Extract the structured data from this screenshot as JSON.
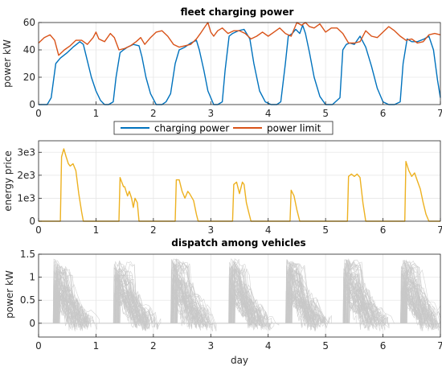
{
  "chart_data": [
    {
      "type": "line",
      "title": "fleet charging power",
      "xlabel": "",
      "ylabel": "power kW",
      "xlim": [
        0,
        7
      ],
      "ylim": [
        0,
        60
      ],
      "xticks": [
        "0",
        "1",
        "2",
        "3",
        "4",
        "5",
        "6",
        "7"
      ],
      "yticks": [
        "0",
        "20",
        "40",
        "60"
      ],
      "grid": true,
      "legend": {
        "placement": "bottom-center",
        "entries": [
          "charging power",
          "power limit"
        ]
      },
      "series": [
        {
          "name": "charging power",
          "color": "#0072BD",
          "x": [
            0,
            0.15,
            0.22,
            0.3,
            0.38,
            0.5,
            0.6,
            0.72,
            0.78,
            0.85,
            0.92,
            1.0,
            1.08,
            1.15,
            1.22,
            1.3,
            1.35,
            1.42,
            1.48,
            1.55,
            1.65,
            1.75,
            1.8,
            1.87,
            1.95,
            2.05,
            2.15,
            2.22,
            2.3,
            2.38,
            2.45,
            2.55,
            2.65,
            2.75,
            2.8,
            2.88,
            2.95,
            3.05,
            3.12,
            3.2,
            3.25,
            3.32,
            3.38,
            3.48,
            3.58,
            3.68,
            3.75,
            3.85,
            3.95,
            4.05,
            4.15,
            4.22,
            4.3,
            4.35,
            4.42,
            4.48,
            4.55,
            4.6,
            4.65,
            4.72,
            4.8,
            4.9,
            5.0,
            5.12,
            5.25,
            5.3,
            5.36,
            5.42,
            5.5,
            5.6,
            5.7,
            5.8,
            5.9,
            6.0,
            6.1,
            6.2,
            6.3,
            6.35,
            6.42,
            6.5,
            6.6,
            6.72,
            6.8,
            6.88,
            6.95,
            7.0
          ],
          "y": [
            0,
            0,
            5,
            30,
            34,
            38,
            42,
            46,
            44,
            32,
            20,
            10,
            3,
            0,
            0,
            2,
            20,
            38,
            40,
            42,
            44,
            43,
            35,
            20,
            8,
            0,
            0,
            2,
            8,
            30,
            40,
            42,
            45,
            47,
            40,
            25,
            10,
            0,
            0,
            2,
            25,
            50,
            52,
            54,
            55,
            48,
            30,
            10,
            2,
            0,
            0,
            2,
            30,
            50,
            52,
            55,
            52,
            58,
            52,
            38,
            20,
            6,
            0,
            0,
            5,
            40,
            44,
            45,
            44,
            50,
            42,
            28,
            12,
            2,
            0,
            0,
            2,
            30,
            48,
            46,
            46,
            48,
            50,
            40,
            18,
            5
          ]
        },
        {
          "name": "power limit",
          "color": "#D95319",
          "x": [
            0,
            0.1,
            0.2,
            0.28,
            0.35,
            0.45,
            0.55,
            0.65,
            0.75,
            0.85,
            0.95,
            1.0,
            1.05,
            1.15,
            1.25,
            1.32,
            1.4,
            1.5,
            1.6,
            1.7,
            1.78,
            1.85,
            1.95,
            2.05,
            2.15,
            2.25,
            2.35,
            2.45,
            2.55,
            2.65,
            2.75,
            2.82,
            2.9,
            2.95,
            3.0,
            3.05,
            3.12,
            3.2,
            3.3,
            3.4,
            3.5,
            3.6,
            3.7,
            3.8,
            3.9,
            4.0,
            4.1,
            4.2,
            4.3,
            4.4,
            4.5,
            4.58,
            4.65,
            4.72,
            4.8,
            4.9,
            5.0,
            5.1,
            5.2,
            5.3,
            5.4,
            5.5,
            5.6,
            5.7,
            5.8,
            5.9,
            6.0,
            6.1,
            6.2,
            6.3,
            6.4,
            6.5,
            6.6,
            6.7,
            6.8,
            6.9,
            7.0
          ],
          "y": [
            45,
            49,
            51,
            47,
            36,
            40,
            43,
            47,
            47,
            44,
            49,
            53,
            48,
            46,
            52,
            49,
            40,
            41,
            43,
            46,
            49,
            44,
            49,
            53,
            54,
            50,
            44,
            42,
            43,
            44,
            48,
            52,
            57,
            60,
            53,
            50,
            54,
            56,
            52,
            54,
            54,
            52,
            48,
            50,
            53,
            50,
            53,
            56,
            52,
            50,
            60,
            58,
            60,
            57,
            56,
            59,
            53,
            56,
            56,
            52,
            45,
            45,
            46,
            54,
            50,
            49,
            53,
            57,
            54,
            50,
            47,
            48,
            45,
            46,
            51,
            52,
            51
          ]
        }
      ]
    },
    {
      "type": "line",
      "title": "",
      "xlabel": "",
      "ylabel": "energy price",
      "xlim": [
        0,
        7
      ],
      "ylim": [
        0,
        3500
      ],
      "xticks": [
        "0",
        "1",
        "2",
        "3",
        "4",
        "5",
        "6",
        "7"
      ],
      "yticks": [
        "0",
        "1e3",
        "2e3",
        "3e3"
      ],
      "grid": true,
      "series": [
        {
          "name": "",
          "color": "#EDB120",
          "x": [
            0,
            0.38,
            0.4,
            0.44,
            0.48,
            0.52,
            0.55,
            0.6,
            0.65,
            0.7,
            0.75,
            0.78,
            1.4,
            1.42,
            1.48,
            1.5,
            1.55,
            1.58,
            1.62,
            1.65,
            1.68,
            1.72,
            1.75,
            2.38,
            2.4,
            2.45,
            2.5,
            2.55,
            2.6,
            2.63,
            2.7,
            2.75,
            2.78,
            3.38,
            3.4,
            3.45,
            3.5,
            3.55,
            3.58,
            3.62,
            3.66,
            3.7,
            4.38,
            4.4,
            4.45,
            4.5,
            4.55,
            5.38,
            5.4,
            5.45,
            5.5,
            5.55,
            5.6,
            5.65,
            5.7,
            6.38,
            6.4,
            6.45,
            6.5,
            6.55,
            6.6,
            6.65,
            6.7,
            6.75,
            6.8,
            7.0
          ],
          "y": [
            0,
            0,
            2800,
            3150,
            2800,
            2500,
            2400,
            2500,
            2200,
            1200,
            400,
            0,
            0,
            1900,
            1500,
            1500,
            1100,
            1300,
            1000,
            600,
            1000,
            800,
            0,
            0,
            1800,
            1800,
            1300,
            1000,
            1300,
            1200,
            900,
            300,
            0,
            0,
            1600,
            1700,
            1200,
            1700,
            1600,
            800,
            400,
            0,
            0,
            1350,
            1100,
            500,
            0,
            0,
            1950,
            2050,
            1950,
            2050,
            1900,
            800,
            0,
            0,
            2600,
            2200,
            1950,
            2100,
            1750,
            1400,
            800,
            300,
            0,
            0
          ]
        }
      ]
    },
    {
      "type": "line",
      "title": "dispatch among vehicles",
      "xlabel": "day",
      "ylabel": "power kW",
      "xlim": [
        0,
        7
      ],
      "ylim": [
        -0.3,
        1.5
      ],
      "xticks": [
        "0",
        "1",
        "2",
        "3",
        "4",
        "5",
        "6",
        "7"
      ],
      "yticks": [
        "0",
        "0.5",
        "1",
        "1.5"
      ],
      "grid": true,
      "series_color": "#C8C8C8",
      "series_count": 60,
      "day_starts": [
        0.25,
        1.3,
        2.3,
        3.3,
        4.3,
        5.3,
        6.3
      ],
      "peak_kW": 1.4
    }
  ]
}
